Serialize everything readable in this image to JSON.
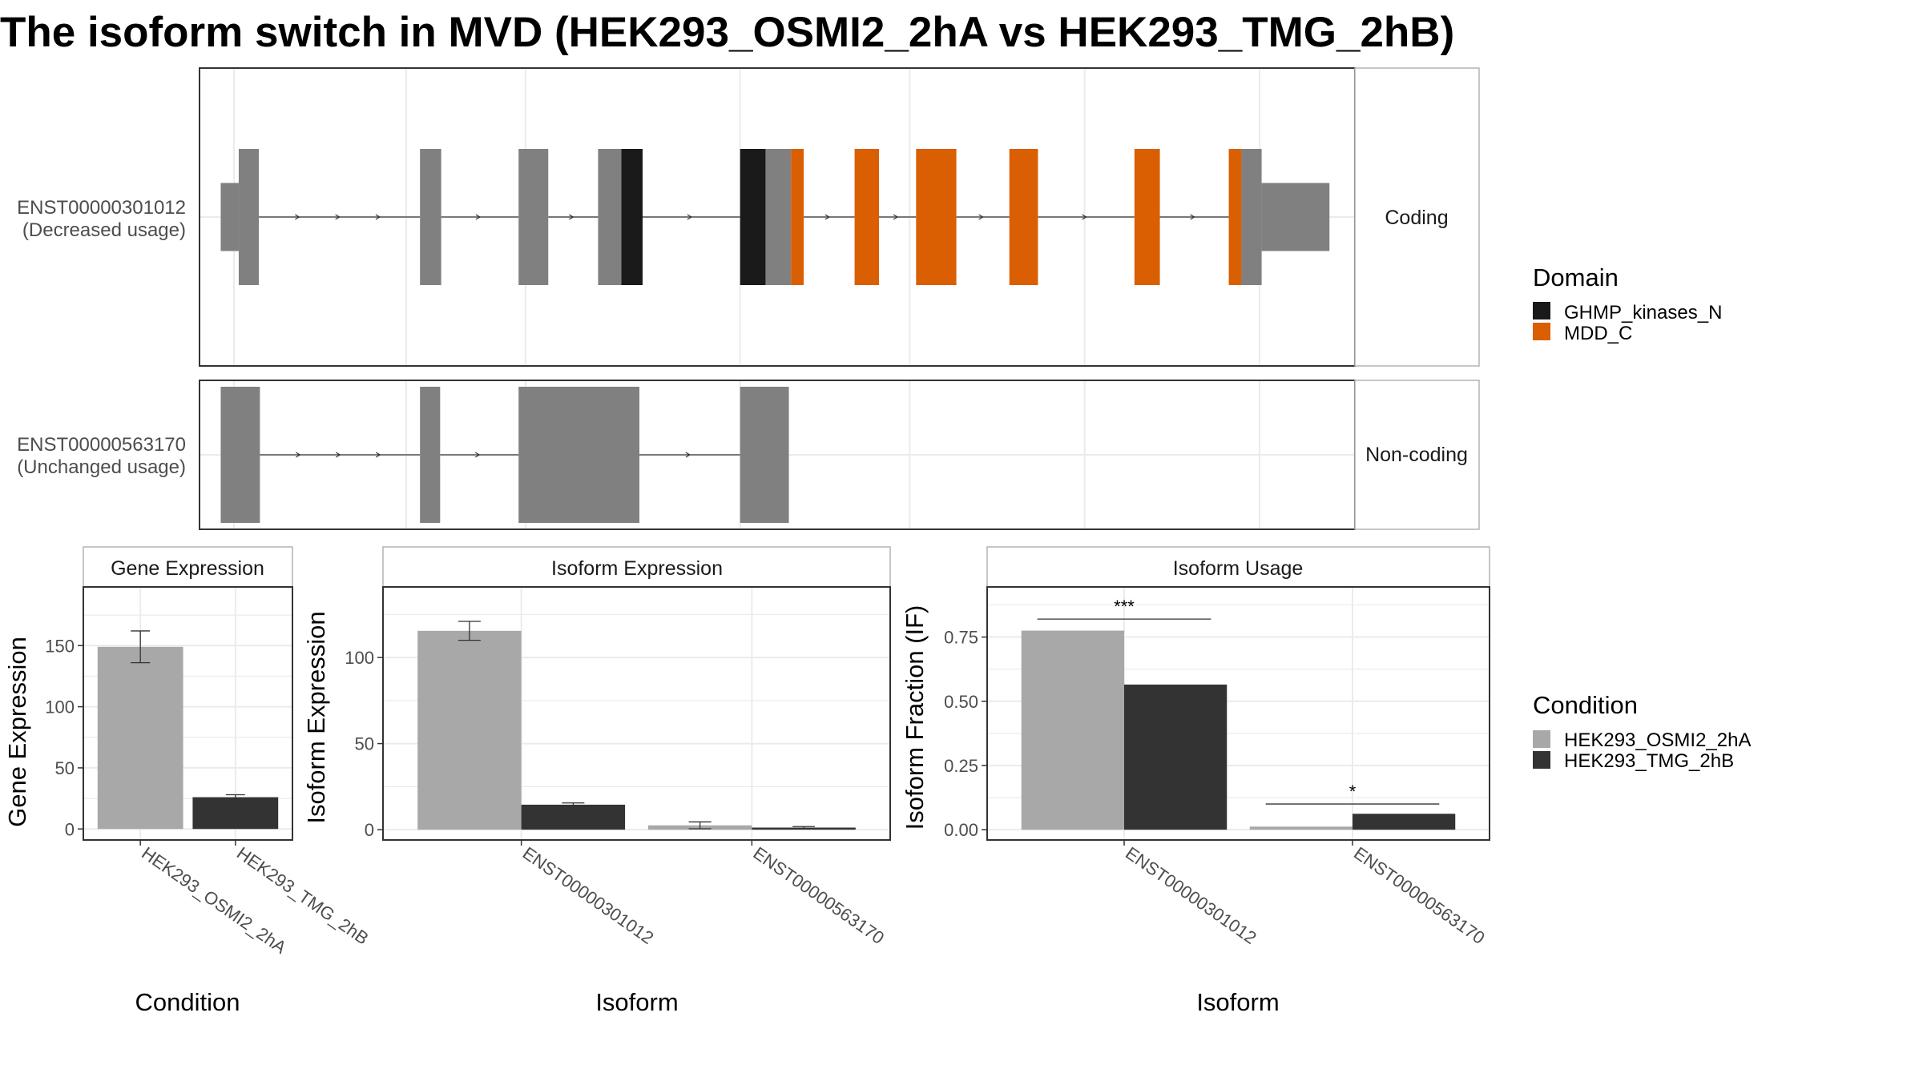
{
  "title": "The isoform switch in MVD (HEK293_OSMI2_2hA vs HEK293_TMG_2hB)",
  "colors": {
    "exon": "#808080",
    "GHMP_kinases_N": "#1a1a1a",
    "MDD_C": "#d95f02",
    "cond_a": "#a8a8a8",
    "cond_b": "#333333",
    "panel_border": "#333333",
    "grid": "#ebebeb",
    "strip_border": "#b3b3b3"
  },
  "structure": {
    "transcripts": [
      {
        "id": "ENST00000301012",
        "usage": "(Decreased usage)",
        "facet": "Coding",
        "segments": [
          {
            "start": 0.0,
            "end": 3.4,
            "kind": "utr"
          },
          {
            "start": 3.4,
            "end": 7.2,
            "kind": "cds"
          },
          {
            "start": 37.6,
            "end": 41.6,
            "kind": "cds"
          },
          {
            "start": 56.2,
            "end": 61.8,
            "kind": "cds"
          },
          {
            "start": 71.2,
            "end": 75.6,
            "kind": "cds"
          },
          {
            "start": 75.6,
            "end": 79.6,
            "kind": "GHMP_kinases_N"
          },
          {
            "start": 98.0,
            "end": 102.8,
            "kind": "GHMP_kinases_N"
          },
          {
            "start": 102.8,
            "end": 107.6,
            "kind": "cds"
          },
          {
            "start": 107.6,
            "end": 110.0,
            "kind": "MDD_C"
          },
          {
            "start": 119.6,
            "end": 124.2,
            "kind": "MDD_C"
          },
          {
            "start": 131.2,
            "end": 138.8,
            "kind": "MDD_C"
          },
          {
            "start": 148.8,
            "end": 154.2,
            "kind": "MDD_C"
          },
          {
            "start": 172.4,
            "end": 177.2,
            "kind": "MDD_C"
          },
          {
            "start": 190.2,
            "end": 192.6,
            "kind": "MDD_C"
          },
          {
            "start": 192.6,
            "end": 196.4,
            "kind": "cds"
          },
          {
            "start": 196.4,
            "end": 209.2,
            "kind": "utr"
          }
        ],
        "introns": [
          [
            7.2,
            37.6
          ],
          [
            41.6,
            56.2
          ],
          [
            61.8,
            71.2
          ],
          [
            79.6,
            98.0
          ],
          [
            110.0,
            119.6
          ],
          [
            124.2,
            131.2
          ],
          [
            138.8,
            148.8
          ],
          [
            154.2,
            172.4
          ],
          [
            177.2,
            190.2
          ]
        ]
      },
      {
        "id": "ENST00000563170",
        "usage": "(Unchanged usage)",
        "facet": "Non-coding",
        "segments": [
          {
            "start": 0.0,
            "end": 7.4,
            "kind": "noncoding"
          },
          {
            "start": 37.6,
            "end": 41.4,
            "kind": "noncoding"
          },
          {
            "start": 56.2,
            "end": 79.0,
            "kind": "noncoding"
          },
          {
            "start": 98.0,
            "end": 107.2,
            "kind": "noncoding"
          }
        ],
        "introns": [
          [
            7.4,
            37.6
          ],
          [
            41.4,
            56.2
          ],
          [
            79.0,
            98.0
          ]
        ]
      }
    ]
  },
  "legend_domain": {
    "title": "Domain",
    "items": [
      {
        "label": "GHMP_kinases_N",
        "color": "#1a1a1a"
      },
      {
        "label": "MDD_C",
        "color": "#d95f02"
      }
    ]
  },
  "legend_condition": {
    "title": "Condition",
    "items": [
      {
        "label": "HEK293_OSMI2_2hA",
        "color": "#a8a8a8"
      },
      {
        "label": "HEK293_TMG_2hB",
        "color": "#333333"
      }
    ]
  },
  "chart_data": [
    {
      "type": "bar",
      "title": "Gene Expression",
      "xlabel": "Condition",
      "ylabel": "Gene Expression",
      "categories": [
        "HEK293_OSMI2_2hA",
        "HEK293_TMG_2hB"
      ],
      "values": [
        149,
        26
      ],
      "errors": [
        [
          136,
          162
        ],
        [
          24,
          28
        ]
      ],
      "ylim": [
        -9,
        198
      ],
      "yticks": [
        0,
        50,
        100,
        150
      ]
    },
    {
      "type": "bar",
      "title": "Isoform Expression",
      "xlabel": "Isoform",
      "ylabel": "Isoform Expression",
      "categories": [
        "ENST00000301012",
        "ENST00000563170"
      ],
      "series": [
        {
          "name": "HEK293_OSMI2_2hA",
          "values": [
            115.5,
            2.5
          ],
          "errors": [
            [
              110,
              121
            ],
            [
              0.5,
              4.5
            ]
          ]
        },
        {
          "name": "HEK293_TMG_2hB",
          "values": [
            14.5,
            1.2
          ],
          "errors": [
            [
              14,
              15.5
            ],
            [
              0.8,
              1.8
            ]
          ]
        }
      ],
      "ylim": [
        -6,
        141
      ],
      "yticks": [
        0,
        50,
        100
      ]
    },
    {
      "type": "bar",
      "title": "Isoform Usage",
      "xlabel": "Isoform",
      "ylabel": "Isoform Fraction (IF)",
      "categories": [
        "ENST00000301012",
        "ENST00000563170"
      ],
      "series": [
        {
          "name": "HEK293_OSMI2_2hA",
          "values": [
            0.775,
            0.012
          ]
        },
        {
          "name": "HEK293_TMG_2hB",
          "values": [
            0.565,
            0.062
          ]
        }
      ],
      "significance": [
        {
          "label": "***",
          "level": 0.82
        },
        {
          "label": "*",
          "level": 0.1
        }
      ],
      "ylim": [
        -0.04,
        0.945
      ],
      "yticks": [
        0.0,
        0.25,
        0.5,
        0.75
      ],
      "ytick_labels": [
        "0.00",
        "0.25",
        "0.50",
        "0.75"
      ]
    }
  ]
}
